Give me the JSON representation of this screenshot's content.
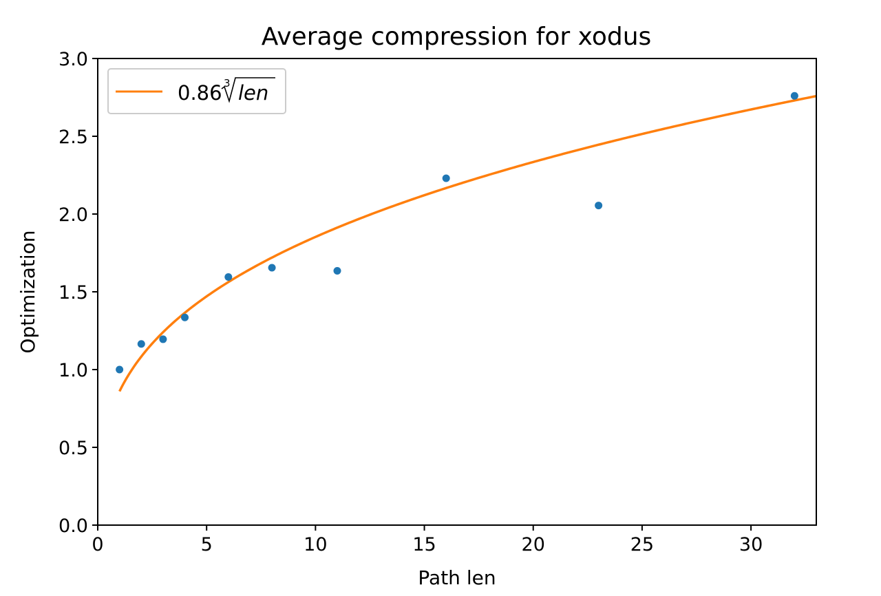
{
  "chart_data": {
    "type": "scatter",
    "title": "Average compression for xodus",
    "xlabel": "Path len",
    "ylabel": "Optimization",
    "xlim": [
      0,
      33
    ],
    "ylim": [
      0.0,
      3.0
    ],
    "xticks": [
      0,
      5,
      10,
      15,
      20,
      25,
      30
    ],
    "yticks": [
      0.0,
      0.5,
      1.0,
      1.5,
      2.0,
      2.5,
      3.0
    ],
    "xtick_labels": [
      "0",
      "5",
      "10",
      "15",
      "20",
      "25",
      "30"
    ],
    "ytick_labels": [
      "0.0",
      "0.5",
      "1.0",
      "1.5",
      "2.0",
      "2.5",
      "3.0"
    ],
    "grid": false,
    "legend_position": "upper-left",
    "series": [
      {
        "kind": "scatter",
        "color": "#1f77b4",
        "x": [
          1,
          2,
          3,
          4,
          6,
          8,
          11,
          16,
          23,
          32
        ],
        "y": [
          1.0,
          1.165,
          1.195,
          1.335,
          1.595,
          1.655,
          1.635,
          2.23,
          2.055,
          2.76
        ]
      },
      {
        "kind": "line",
        "name_coef": "0.86",
        "name_root_index": "3",
        "name_var": "len",
        "color": "#ff7f0e",
        "coefficient": 0.86,
        "root": 3,
        "x_start": 1,
        "x_end": 33
      }
    ]
  }
}
